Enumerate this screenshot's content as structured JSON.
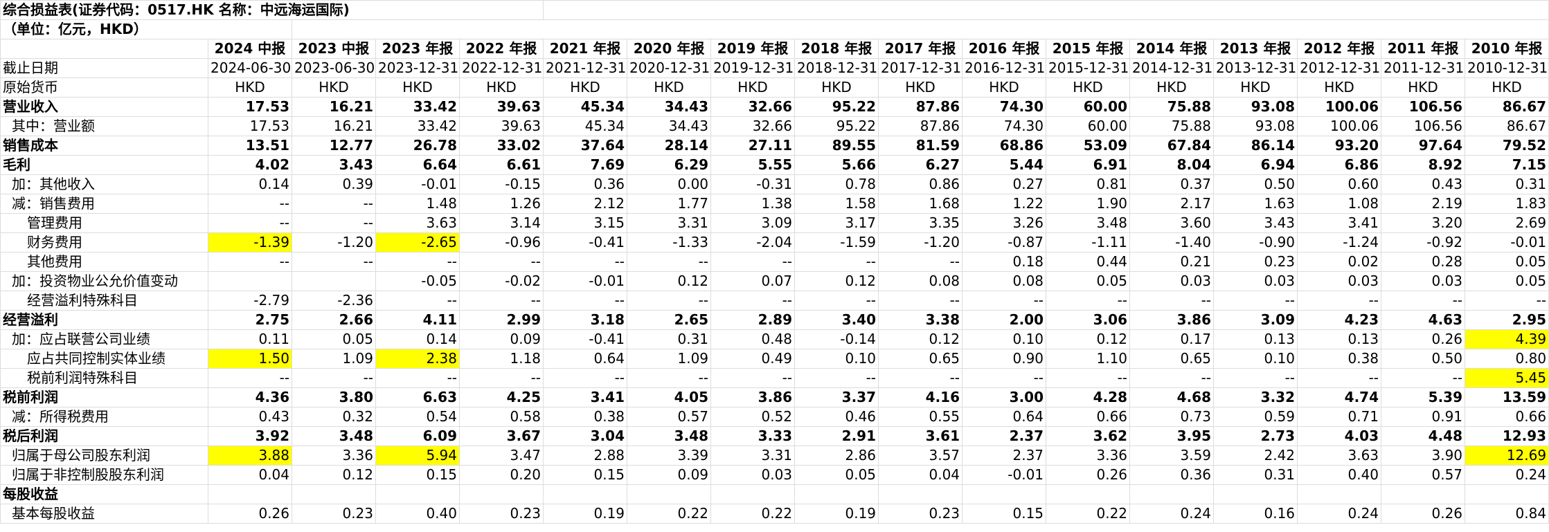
{
  "title": "综合损益表(证券代码：0517.HK 名称：中远海运国际)",
  "unit": "（单位：亿元，HKD）",
  "columns": [
    "2024 中报",
    "2023 中报",
    "2023 年报",
    "2022 年报",
    "2021 年报",
    "2020 年报",
    "2019 年报",
    "2018 年报",
    "2017 年报",
    "2016 年报",
    "2015 年报",
    "2014 年报",
    "2013 年报",
    "2012 年报",
    "2011 年报",
    "2010 年报"
  ],
  "rows": [
    {
      "label": "截止日期",
      "indent": 0,
      "bold": false,
      "align": "ctr",
      "values": [
        "2024-06-30",
        "2023-06-30",
        "2023-12-31",
        "2022-12-31",
        "2021-12-31",
        "2020-12-31",
        "2019-12-31",
        "2018-12-31",
        "2017-12-31",
        "2016-12-31",
        "2015-12-31",
        "2014-12-31",
        "2013-12-31",
        "2012-12-31",
        "2011-12-31",
        "2010-12-31"
      ],
      "hl": []
    },
    {
      "label": "原始货币",
      "indent": 0,
      "bold": false,
      "align": "ctr",
      "values": [
        "HKD",
        "HKD",
        "HKD",
        "HKD",
        "HKD",
        "HKD",
        "HKD",
        "HKD",
        "HKD",
        "HKD",
        "HKD",
        "HKD",
        "HKD",
        "HKD",
        "HKD",
        "HKD"
      ],
      "hl": []
    },
    {
      "label": "营业收入",
      "indent": 0,
      "bold": true,
      "align": "val",
      "values": [
        "17.53",
        "16.21",
        "33.42",
        "39.63",
        "45.34",
        "34.43",
        "32.66",
        "95.22",
        "87.86",
        "74.30",
        "60.00",
        "75.88",
        "93.08",
        "100.06",
        "106.56",
        "86.67"
      ],
      "hl": []
    },
    {
      "label": "其中：营业额",
      "indent": 1,
      "bold": false,
      "align": "val",
      "values": [
        "17.53",
        "16.21",
        "33.42",
        "39.63",
        "45.34",
        "34.43",
        "32.66",
        "95.22",
        "87.86",
        "74.30",
        "60.00",
        "75.88",
        "93.08",
        "100.06",
        "106.56",
        "86.67"
      ],
      "hl": []
    },
    {
      "label": "销售成本",
      "indent": 0,
      "bold": true,
      "align": "val",
      "values": [
        "13.51",
        "12.77",
        "26.78",
        "33.02",
        "37.64",
        "28.14",
        "27.11",
        "89.55",
        "81.59",
        "68.86",
        "53.09",
        "67.84",
        "86.14",
        "93.20",
        "97.64",
        "79.52"
      ],
      "hl": []
    },
    {
      "label": "毛利",
      "indent": 0,
      "bold": true,
      "align": "val",
      "values": [
        "4.02",
        "3.43",
        "6.64",
        "6.61",
        "7.69",
        "6.29",
        "5.55",
        "5.66",
        "6.27",
        "5.44",
        "6.91",
        "8.04",
        "6.94",
        "6.86",
        "8.92",
        "7.15"
      ],
      "hl": []
    },
    {
      "label": "加：其他收入",
      "indent": 1,
      "bold": false,
      "align": "val",
      "values": [
        "0.14",
        "0.39",
        "-0.01",
        "-0.15",
        "0.36",
        "0.00",
        "-0.31",
        "0.78",
        "0.86",
        "0.27",
        "0.81",
        "0.37",
        "0.50",
        "0.60",
        "0.43",
        "0.31"
      ],
      "hl": []
    },
    {
      "label": "减：销售费用",
      "indent": 1,
      "bold": false,
      "align": "val",
      "values": [
        "--",
        "--",
        "1.48",
        "1.26",
        "2.12",
        "1.77",
        "1.38",
        "1.58",
        "1.68",
        "1.22",
        "1.90",
        "2.17",
        "1.63",
        "1.08",
        "2.19",
        "1.83"
      ],
      "hl": []
    },
    {
      "label": "管理费用",
      "indent": 2,
      "bold": false,
      "align": "val",
      "values": [
        "--",
        "--",
        "3.63",
        "3.14",
        "3.15",
        "3.31",
        "3.09",
        "3.17",
        "3.35",
        "3.26",
        "3.48",
        "3.60",
        "3.43",
        "3.41",
        "3.20",
        "2.69"
      ],
      "hl": []
    },
    {
      "label": "财务费用",
      "indent": 2,
      "bold": false,
      "align": "val",
      "values": [
        "-1.39",
        "-1.20",
        "-2.65",
        "-0.96",
        "-0.41",
        "-1.33",
        "-2.04",
        "-1.59",
        "-1.20",
        "-0.87",
        "-1.11",
        "-1.40",
        "-0.90",
        "-1.24",
        "-0.92",
        "-0.01"
      ],
      "hl": [
        0,
        2
      ]
    },
    {
      "label": "其他费用",
      "indent": 2,
      "bold": false,
      "align": "val",
      "values": [
        "--",
        "--",
        "--",
        "--",
        "--",
        "--",
        "--",
        "--",
        "--",
        "0.18",
        "0.44",
        "0.21",
        "0.23",
        "0.02",
        "0.28",
        "0.05"
      ],
      "hl": []
    },
    {
      "label": "加：投资物业公允价值变动",
      "indent": 1,
      "bold": false,
      "align": "val",
      "values": [
        "",
        "",
        "-0.05",
        "-0.02",
        "-0.01",
        "0.12",
        "0.07",
        "0.12",
        "0.08",
        "0.08",
        "0.05",
        "0.03",
        "0.03",
        "0.03",
        "0.03",
        "0.05"
      ],
      "hl": []
    },
    {
      "label": "经营溢利特殊科目",
      "indent": 2,
      "bold": false,
      "align": "val",
      "values": [
        "-2.79",
        "-2.36",
        "--",
        "--",
        "--",
        "--",
        "--",
        "--",
        "--",
        "--",
        "--",
        "--",
        "--",
        "--",
        "--",
        "--"
      ],
      "hl": []
    },
    {
      "label": "经营溢利",
      "indent": 0,
      "bold": true,
      "align": "val",
      "values": [
        "2.75",
        "2.66",
        "4.11",
        "2.99",
        "3.18",
        "2.65",
        "2.89",
        "3.40",
        "3.38",
        "2.00",
        "3.06",
        "3.86",
        "3.09",
        "4.23",
        "4.63",
        "2.95"
      ],
      "hl": []
    },
    {
      "label": "加：应占联营公司业绩",
      "indent": 1,
      "bold": false,
      "align": "val",
      "values": [
        "0.11",
        "0.05",
        "0.14",
        "0.09",
        "-0.41",
        "0.31",
        "0.48",
        "-0.14",
        "0.12",
        "0.10",
        "0.12",
        "0.17",
        "0.13",
        "0.13",
        "0.26",
        "4.39"
      ],
      "hl": [
        15
      ]
    },
    {
      "label": "应占共同控制实体业绩",
      "indent": 2,
      "bold": false,
      "align": "val",
      "values": [
        "1.50",
        "1.09",
        "2.38",
        "1.18",
        "0.64",
        "1.09",
        "0.49",
        "0.10",
        "0.65",
        "0.90",
        "1.10",
        "0.65",
        "0.10",
        "0.38",
        "0.50",
        "0.80"
      ],
      "hl": [
        0,
        2
      ]
    },
    {
      "label": "税前利润特殊科目",
      "indent": 2,
      "bold": false,
      "align": "val",
      "values": [
        "--",
        "--",
        "--",
        "--",
        "--",
        "--",
        "--",
        "--",
        "--",
        "--",
        "--",
        "--",
        "--",
        "--",
        "--",
        "5.45"
      ],
      "hl": [
        15
      ]
    },
    {
      "label": "税前利润",
      "indent": 0,
      "bold": true,
      "align": "val",
      "values": [
        "4.36",
        "3.80",
        "6.63",
        "4.25",
        "3.41",
        "4.05",
        "3.86",
        "3.37",
        "4.16",
        "3.00",
        "4.28",
        "4.68",
        "3.32",
        "4.74",
        "5.39",
        "13.59"
      ],
      "hl": []
    },
    {
      "label": "减：所得税费用",
      "indent": 1,
      "bold": false,
      "align": "val",
      "values": [
        "0.43",
        "0.32",
        "0.54",
        "0.58",
        "0.38",
        "0.57",
        "0.52",
        "0.46",
        "0.55",
        "0.64",
        "0.66",
        "0.73",
        "0.59",
        "0.71",
        "0.91",
        "0.66"
      ],
      "hl": []
    },
    {
      "label": "税后利润",
      "indent": 0,
      "bold": true,
      "align": "val",
      "values": [
        "3.92",
        "3.48",
        "6.09",
        "3.67",
        "3.04",
        "3.48",
        "3.33",
        "2.91",
        "3.61",
        "2.37",
        "3.62",
        "3.95",
        "2.73",
        "4.03",
        "4.48",
        "12.93"
      ],
      "hl": []
    },
    {
      "label": "归属于母公司股东利润",
      "indent": 1,
      "bold": false,
      "align": "val",
      "values": [
        "3.88",
        "3.36",
        "5.94",
        "3.47",
        "2.88",
        "3.39",
        "3.31",
        "2.86",
        "3.57",
        "2.37",
        "3.36",
        "3.59",
        "2.42",
        "3.63",
        "3.90",
        "12.69"
      ],
      "hl": [
        0,
        2,
        15
      ]
    },
    {
      "label": "归属于非控制股股东利润",
      "indent": 1,
      "bold": false,
      "align": "val",
      "values": [
        "0.04",
        "0.12",
        "0.15",
        "0.20",
        "0.15",
        "0.09",
        "0.03",
        "0.05",
        "0.04",
        "-0.01",
        "0.26",
        "0.36",
        "0.31",
        "0.40",
        "0.57",
        "0.24"
      ],
      "hl": []
    },
    {
      "label": "每股收益",
      "indent": 0,
      "bold": true,
      "align": "val",
      "values": [
        "",
        "",
        "",
        "",
        "",
        "",
        "",
        "",
        "",
        "",
        "",
        "",
        "",
        "",
        "",
        ""
      ],
      "hl": []
    },
    {
      "label": "基本每股收益",
      "indent": 1,
      "bold": false,
      "align": "val",
      "values": [
        "0.26",
        "0.23",
        "0.40",
        "0.23",
        "0.19",
        "0.22",
        "0.22",
        "0.19",
        "0.23",
        "0.15",
        "0.22",
        "0.24",
        "0.16",
        "0.24",
        "0.26",
        "0.84"
      ],
      "hl": []
    }
  ]
}
